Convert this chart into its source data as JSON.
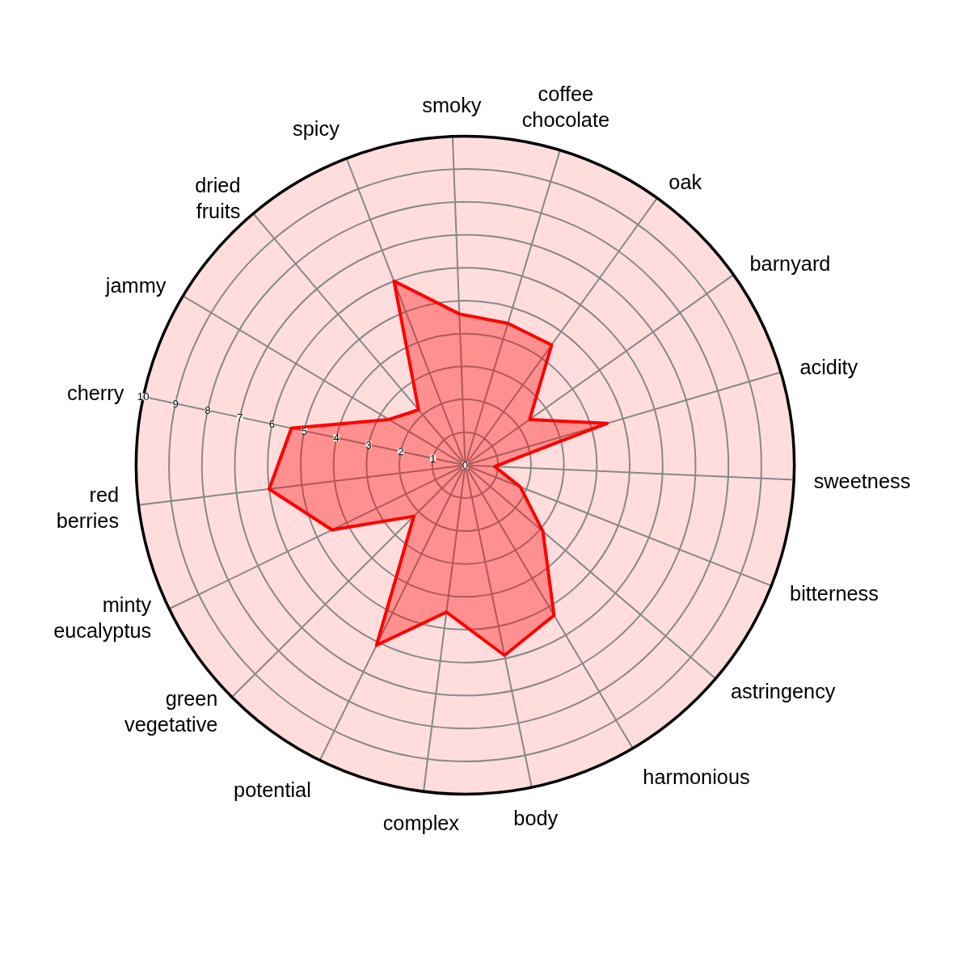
{
  "chart_data": {
    "type": "radar",
    "categories": [
      "smoky",
      "coffee\nchocolate",
      "oak",
      "barnyard",
      "acidity",
      "sweetness",
      "bitterness",
      "astringency",
      "harmonious",
      "body",
      "complex",
      "potential",
      "green\nvegetative",
      "minty\neucalyptus",
      "red\nberries",
      "cherry",
      "jammy",
      "dried\nfruits",
      "spicy"
    ],
    "series": [
      {
        "color": "#ff0000",
        "values": [
          4.6,
          4.5,
          4.5,
          2.4,
          4.5,
          0.9,
          1.8,
          3.1,
          5.3,
          5.9,
          4.5,
          6.1,
          2.2,
          4.5,
          6.0,
          5.4,
          2.7,
          2.2,
          6.0
        ]
      }
    ],
    "ylim": [
      0,
      10
    ],
    "yticks": [
      0,
      1,
      2,
      3,
      4,
      5,
      6,
      7,
      8,
      9,
      10
    ],
    "grid": true
  }
}
